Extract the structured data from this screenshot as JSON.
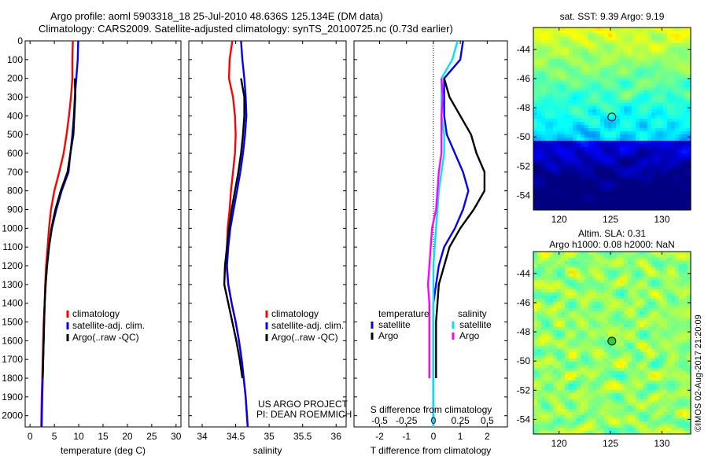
{
  "header": {
    "line1": "Argo profile: aoml 5903318_18 25-Jul-2010 48.636S 125.134E (DM data)",
    "line2": "Climatology: CARS2009. Satellite-adjusted climatology: synTS_20100725.nc (0.73d earlier)"
  },
  "credit": {
    "line1": "US ARGO PROJECT",
    "line2": "PI: DEAN ROEMMICH"
  },
  "stamp": "©IMOS 02-Aug-2017 21:20:09",
  "colors": {
    "climatology": "#ff0000",
    "satellite": "#0000ff",
    "argo": "#000000",
    "sat_diff_s": "#00e0ff",
    "argo_diff_s": "#ff00ff"
  },
  "chart_data": [
    {
      "id": "temperature",
      "type": "line",
      "xlabel": "temperature (deg C)",
      "ylabel": "",
      "xlim": [
        -1,
        31
      ],
      "ylim": [
        0,
        2060
      ],
      "y_reversed": true,
      "xticks": [
        0,
        5,
        10,
        15,
        20,
        25,
        30
      ],
      "yticks": [
        0,
        100,
        200,
        300,
        400,
        500,
        600,
        700,
        800,
        900,
        1000,
        1100,
        1200,
        1300,
        1400,
        1500,
        1600,
        1700,
        1800,
        1900,
        2000
      ],
      "legend": [
        "climatology",
        "satellite-adj. clim.",
        "Argo(..raw -QC)"
      ],
      "series": [
        {
          "name": "climatology",
          "color": "#ff0000",
          "points": [
            [
              8.8,
              0
            ],
            [
              8.7,
              100
            ],
            [
              8.7,
              200
            ],
            [
              8.4,
              300
            ],
            [
              8.0,
              400
            ],
            [
              7.5,
              500
            ],
            [
              6.9,
              600
            ],
            [
              6.0,
              700
            ],
            [
              5.0,
              800
            ],
            [
              4.3,
              900
            ],
            [
              3.9,
              1000
            ],
            [
              3.6,
              1100
            ],
            [
              3.3,
              1200
            ],
            [
              3.1,
              1300
            ],
            [
              3.0,
              1400
            ],
            [
              2.8,
              1500
            ],
            [
              2.7,
              1600
            ],
            [
              2.6,
              1700
            ],
            [
              2.5,
              1800
            ],
            [
              2.4,
              1900
            ],
            [
              2.3,
              2060
            ]
          ]
        },
        {
          "name": "satellite-adj. clim.",
          "color": "#0000ff",
          "points": [
            [
              9.9,
              0
            ],
            [
              9.8,
              100
            ],
            [
              9.5,
              200
            ],
            [
              9.2,
              300
            ],
            [
              9.0,
              400
            ],
            [
              8.7,
              500
            ],
            [
              8.3,
              600
            ],
            [
              7.9,
              700
            ],
            [
              6.5,
              800
            ],
            [
              5.4,
              900
            ],
            [
              4.5,
              1000
            ],
            [
              3.9,
              1100
            ],
            [
              3.5,
              1200
            ],
            [
              3.2,
              1300
            ],
            [
              3.0,
              1400
            ],
            [
              2.9,
              1500
            ],
            [
              2.8,
              1600
            ],
            [
              2.7,
              1700
            ],
            [
              2.6,
              1800
            ],
            [
              2.5,
              1900
            ],
            [
              2.4,
              2060
            ]
          ]
        },
        {
          "name": "Argo(..raw -QC)",
          "color": "#000000",
          "points": [
            [
              9.2,
              200
            ],
            [
              9.3,
              300
            ],
            [
              9.1,
              400
            ],
            [
              8.9,
              500
            ],
            [
              8.3,
              600
            ],
            [
              7.7,
              700
            ],
            [
              6.3,
              800
            ],
            [
              5.2,
              900
            ],
            [
              4.4,
              1000
            ],
            [
              3.9,
              1100
            ],
            [
              3.5,
              1200
            ],
            [
              3.2,
              1300
            ],
            [
              3.0,
              1400
            ],
            [
              2.9,
              1500
            ],
            [
              2.8,
              1600
            ],
            [
              2.7,
              1700
            ],
            [
              2.6,
              1800
            ]
          ]
        }
      ]
    },
    {
      "id": "salinity",
      "type": "line",
      "xlabel": "salinity",
      "ylabel": "",
      "xlim": [
        33.8,
        36.15
      ],
      "ylim": [
        0,
        2060
      ],
      "y_reversed": true,
      "xticks": [
        34,
        34.5,
        35,
        35.5,
        36
      ],
      "legend": [
        "climatology",
        "satellite-adj. clim.",
        "Argo(..raw -QC)"
      ],
      "series": [
        {
          "name": "climatology",
          "color": "#ff0000",
          "points": [
            [
              34.45,
              0
            ],
            [
              34.41,
              100
            ],
            [
              34.4,
              200
            ],
            [
              34.46,
              300
            ],
            [
              34.49,
              400
            ],
            [
              34.5,
              500
            ],
            [
              34.49,
              600
            ],
            [
              34.46,
              700
            ],
            [
              34.43,
              800
            ],
            [
              34.41,
              900
            ],
            [
              34.38,
              1000
            ],
            [
              34.37,
              1100
            ],
            [
              34.36,
              1200
            ],
            [
              34.39,
              1300
            ],
            [
              34.44,
              1400
            ],
            [
              34.5,
              1500
            ],
            [
              34.55,
              1600
            ],
            [
              34.59,
              1700
            ],
            [
              34.62,
              1800
            ],
            [
              34.65,
              1900
            ],
            [
              34.68,
              2060
            ]
          ]
        },
        {
          "name": "satellite-adj. clim.",
          "color": "#0000ff",
          "points": [
            [
              34.58,
              0
            ],
            [
              34.6,
              100
            ],
            [
              34.63,
              200
            ],
            [
              34.65,
              300
            ],
            [
              34.66,
              400
            ],
            [
              34.64,
              500
            ],
            [
              34.61,
              600
            ],
            [
              34.57,
              700
            ],
            [
              34.52,
              800
            ],
            [
              34.47,
              900
            ],
            [
              34.42,
              1000
            ],
            [
              34.39,
              1100
            ],
            [
              34.37,
              1200
            ],
            [
              34.39,
              1300
            ],
            [
              34.44,
              1400
            ],
            [
              34.5,
              1500
            ],
            [
              34.55,
              1600
            ],
            [
              34.59,
              1700
            ],
            [
              34.62,
              1800
            ],
            [
              34.65,
              1900
            ],
            [
              34.68,
              2060
            ]
          ]
        },
        {
          "name": "Argo(..raw -QC)",
          "color": "#000000",
          "points": [
            [
              34.58,
              200
            ],
            [
              34.63,
              300
            ],
            [
              34.63,
              400
            ],
            [
              34.61,
              500
            ],
            [
              34.58,
              600
            ],
            [
              34.54,
              700
            ],
            [
              34.49,
              800
            ],
            [
              34.44,
              900
            ],
            [
              34.4,
              1000
            ],
            [
              34.37,
              1100
            ],
            [
              34.34,
              1200
            ],
            [
              34.33,
              1300
            ],
            [
              34.39,
              1400
            ],
            [
              34.45,
              1500
            ],
            [
              34.51,
              1600
            ],
            [
              34.56,
              1700
            ],
            [
              34.6,
              1800
            ]
          ]
        }
      ]
    },
    {
      "id": "differences",
      "type": "line",
      "xlabel": "T difference from climatology",
      "xlabel2": "S difference from climatology",
      "xlim": [
        -2.95,
        2.75
      ],
      "ylim": [
        0,
        2060
      ],
      "y_reversed": true,
      "xticks": [
        -2,
        -1,
        0,
        1,
        2
      ],
      "xticklabels": [
        "-2",
        "-1",
        "0",
        "1",
        "2"
      ],
      "top_ticks": [
        -0.5,
        -0.25,
        0,
        0.25,
        0.5
      ],
      "top_tick_positions": [
        -2,
        -1,
        0,
        1,
        2
      ],
      "legend_titles": [
        "temperature",
        "salinity"
      ],
      "legend": [
        "satellite",
        "Argo",
        "satellite",
        "Argo"
      ],
      "series": [
        {
          "name": "temperature satellite",
          "color": "#0000ff",
          "points": [
            [
              1.1,
              0
            ],
            [
              1.0,
              100
            ],
            [
              0.4,
              200
            ],
            [
              0.4,
              300
            ],
            [
              0.4,
              400
            ],
            [
              0.5,
              500
            ],
            [
              0.8,
              600
            ],
            [
              1.1,
              700
            ],
            [
              1.3,
              800
            ],
            [
              1.1,
              900
            ],
            [
              0.8,
              1000
            ],
            [
              0.4,
              1100
            ],
            [
              0.2,
              1200
            ],
            [
              0.1,
              1300
            ],
            [
              0.0,
              1400
            ],
            [
              0.0,
              1500
            ],
            [
              0.0,
              1600
            ],
            [
              0.0,
              1700
            ],
            [
              0.0,
              1800
            ],
            [
              0.0,
              1900
            ],
            [
              0.0,
              2060
            ]
          ]
        },
        {
          "name": "temperature Argo",
          "color": "#000000",
          "points": [
            [
              0.4,
              200
            ],
            [
              0.6,
              300
            ],
            [
              1.0,
              400
            ],
            [
              1.4,
              500
            ],
            [
              1.6,
              600
            ],
            [
              1.9,
              700
            ],
            [
              1.9,
              800
            ],
            [
              1.5,
              900
            ],
            [
              1.0,
              1000
            ],
            [
              0.6,
              1100
            ],
            [
              0.4,
              1200
            ],
            [
              0.2,
              1300
            ],
            [
              0.15,
              1400
            ],
            [
              0.1,
              1500
            ],
            [
              0.1,
              1600
            ],
            [
              0.1,
              1700
            ],
            [
              0.1,
              1800
            ]
          ]
        },
        {
          "name": "salinity satellite",
          "color": "#00e0ff",
          "points": [
            [
              0.9,
              0
            ],
            [
              0.7,
              100
            ],
            [
              0.3,
              200
            ],
            [
              0.3,
              300
            ],
            [
              0.3,
              400
            ],
            [
              0.4,
              500
            ],
            [
              0.4,
              600
            ],
            [
              0.3,
              700
            ],
            [
              0.2,
              800
            ],
            [
              0.15,
              900
            ],
            [
              0.1,
              1000
            ],
            [
              0.05,
              1100
            ],
            [
              0.0,
              1200
            ],
            [
              0.0,
              1300
            ],
            [
              0.0,
              1400
            ],
            [
              0.0,
              1500
            ],
            [
              0.0,
              1600
            ],
            [
              0.0,
              1700
            ],
            [
              0.0,
              1800
            ],
            [
              0.0,
              1900
            ],
            [
              0.0,
              2060
            ]
          ]
        },
        {
          "name": "salinity Argo",
          "color": "#ff00ff",
          "points": [
            [
              0.3,
              200
            ],
            [
              0.35,
              300
            ],
            [
              0.3,
              400
            ],
            [
              0.3,
              500
            ],
            [
              0.3,
              600
            ],
            [
              0.2,
              700
            ],
            [
              0.15,
              800
            ],
            [
              0.1,
              900
            ],
            [
              -0.05,
              1000
            ],
            [
              -0.1,
              1100
            ],
            [
              -0.15,
              1200
            ],
            [
              -0.2,
              1300
            ],
            [
              -0.15,
              1400
            ],
            [
              -0.15,
              1500
            ],
            [
              -0.15,
              1600
            ],
            [
              -0.15,
              1700
            ],
            [
              -0.15,
              1800
            ]
          ]
        }
      ]
    },
    {
      "id": "sst_map",
      "type": "heatmap",
      "title": "sat. SST: 9.39  Argo: 9.19",
      "xlim": [
        117.5,
        132.8
      ],
      "ylim": [
        -55,
        -42.5
      ],
      "xticks": [
        120,
        125,
        130
      ],
      "yticks": [
        -44,
        -46,
        -48,
        -50,
        -52,
        -54
      ],
      "marker": [
        125.134,
        -48.636
      ]
    },
    {
      "id": "sla_map",
      "type": "heatmap",
      "title": "Altim. SLA: 0.31",
      "title2": "Argo h1000: 0.08 h2000: NaN",
      "xlim": [
        117.5,
        132.8
      ],
      "ylim": [
        -55,
        -42.5
      ],
      "xticks": [
        120,
        125,
        130
      ],
      "yticks": [
        -44,
        -46,
        -48,
        -50,
        -52,
        -54
      ],
      "marker": [
        125.134,
        -48.636
      ]
    }
  ]
}
